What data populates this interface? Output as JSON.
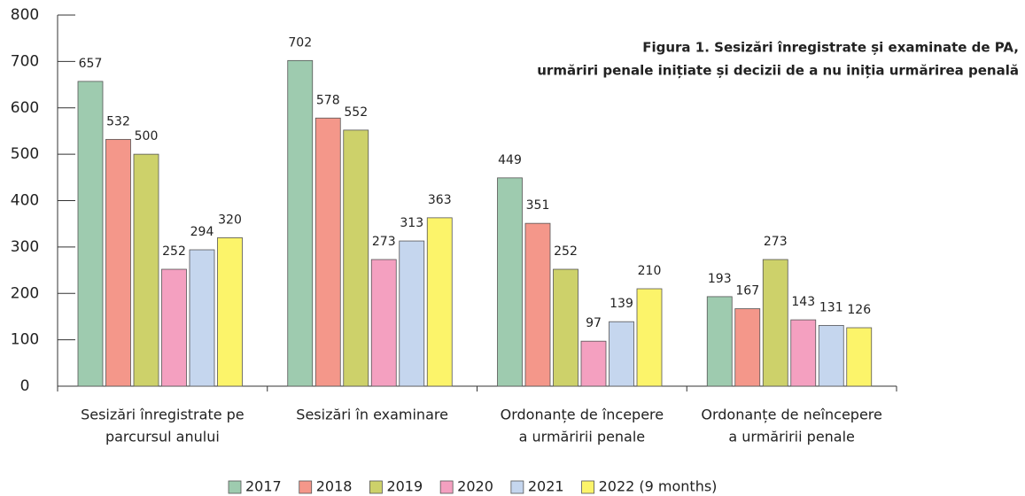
{
  "chart_data": {
    "type": "bar",
    "title": [
      "Figura 1. Sesizări înregistrate și examinate de PA,",
      "urmăriri penale inițiate și decizii de a nu iniția urmărirea penală"
    ],
    "categories": [
      [
        "Sesizări înregistrate pe",
        "parcursul anului"
      ],
      [
        "Sesizări în examinare"
      ],
      [
        "Ordonanțe de începere",
        "a urmăririi penale"
      ],
      [
        "Ordonanțe de neîncepere",
        "a urmăririi penale"
      ]
    ],
    "series": [
      {
        "name": "2017",
        "color": "#9ecbaf",
        "values": [
          657,
          702,
          449,
          193
        ]
      },
      {
        "name": "2018",
        "color": "#f4978a",
        "values": [
          532,
          578,
          351,
          167
        ]
      },
      {
        "name": "2019",
        "color": "#cdd16a",
        "values": [
          500,
          552,
          252,
          273
        ]
      },
      {
        "name": "2020",
        "color": "#f4a0c0",
        "values": [
          252,
          273,
          97,
          143
        ]
      },
      {
        "name": "2021",
        "color": "#c5d6ee",
        "values": [
          294,
          313,
          139,
          131
        ]
      },
      {
        "name": "2022 (9 months)",
        "color": "#fcf46a",
        "values": [
          320,
          363,
          210,
          126
        ]
      }
    ],
    "ylim": [
      0,
      800
    ],
    "yticks": [
      0,
      100,
      200,
      300,
      400,
      500,
      600,
      700,
      800
    ],
    "legend": "bottom"
  }
}
